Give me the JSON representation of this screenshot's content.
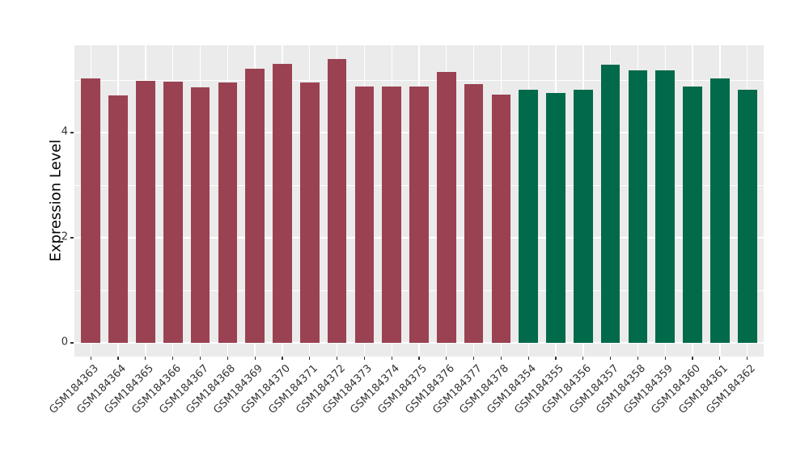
{
  "chart_data": {
    "type": "bar",
    "title": "",
    "xlabel": "",
    "ylabel": "Expression Level",
    "legend": "none",
    "grid": true,
    "ylim": [
      0,
      5.66
    ],
    "ytick_labels": [
      "0",
      "2",
      "4"
    ],
    "ytick_values": [
      0,
      2,
      4
    ],
    "yticks_minor": [
      1,
      3,
      5
    ],
    "bars": [
      {
        "category": "GSM184363",
        "value": 5.03,
        "group": "maroon"
      },
      {
        "category": "GSM184364",
        "value": 4.71,
        "group": "maroon"
      },
      {
        "category": "GSM184365",
        "value": 4.99,
        "group": "maroon"
      },
      {
        "category": "GSM184366",
        "value": 4.97,
        "group": "maroon"
      },
      {
        "category": "GSM184367",
        "value": 4.86,
        "group": "maroon"
      },
      {
        "category": "GSM184368",
        "value": 4.95,
        "group": "maroon"
      },
      {
        "category": "GSM184369",
        "value": 5.22,
        "group": "maroon"
      },
      {
        "category": "GSM184370",
        "value": 5.31,
        "group": "maroon"
      },
      {
        "category": "GSM184371",
        "value": 4.95,
        "group": "maroon"
      },
      {
        "category": "GSM184372",
        "value": 5.4,
        "group": "maroon"
      },
      {
        "category": "GSM184373",
        "value": 4.88,
        "group": "maroon"
      },
      {
        "category": "GSM184374",
        "value": 4.88,
        "group": "maroon"
      },
      {
        "category": "GSM184375",
        "value": 4.87,
        "group": "maroon"
      },
      {
        "category": "GSM184376",
        "value": 5.16,
        "group": "maroon"
      },
      {
        "category": "GSM184377",
        "value": 4.92,
        "group": "maroon"
      },
      {
        "category": "GSM184378",
        "value": 4.73,
        "group": "maroon"
      },
      {
        "category": "GSM184354",
        "value": 4.82,
        "group": "green"
      },
      {
        "category": "GSM184355",
        "value": 4.75,
        "group": "green"
      },
      {
        "category": "GSM184356",
        "value": 4.81,
        "group": "green"
      },
      {
        "category": "GSM184357",
        "value": 5.29,
        "group": "green"
      },
      {
        "category": "GSM184358",
        "value": 5.19,
        "group": "green"
      },
      {
        "category": "GSM184359",
        "value": 5.19,
        "group": "green"
      },
      {
        "category": "GSM184360",
        "value": 4.88,
        "group": "green"
      },
      {
        "category": "GSM184361",
        "value": 5.03,
        "group": "green"
      },
      {
        "category": "GSM184362",
        "value": 4.82,
        "group": "green"
      }
    ],
    "colors": {
      "maroon": "#9A4252",
      "green": "#006A4A",
      "panel_background": "#EBEBEB",
      "gridline": "#FFFFFF",
      "tick_mark": "#333333",
      "tick_label": "#333333",
      "axis_title": "#000000",
      "figure_background": "#FFFFFF"
    }
  }
}
